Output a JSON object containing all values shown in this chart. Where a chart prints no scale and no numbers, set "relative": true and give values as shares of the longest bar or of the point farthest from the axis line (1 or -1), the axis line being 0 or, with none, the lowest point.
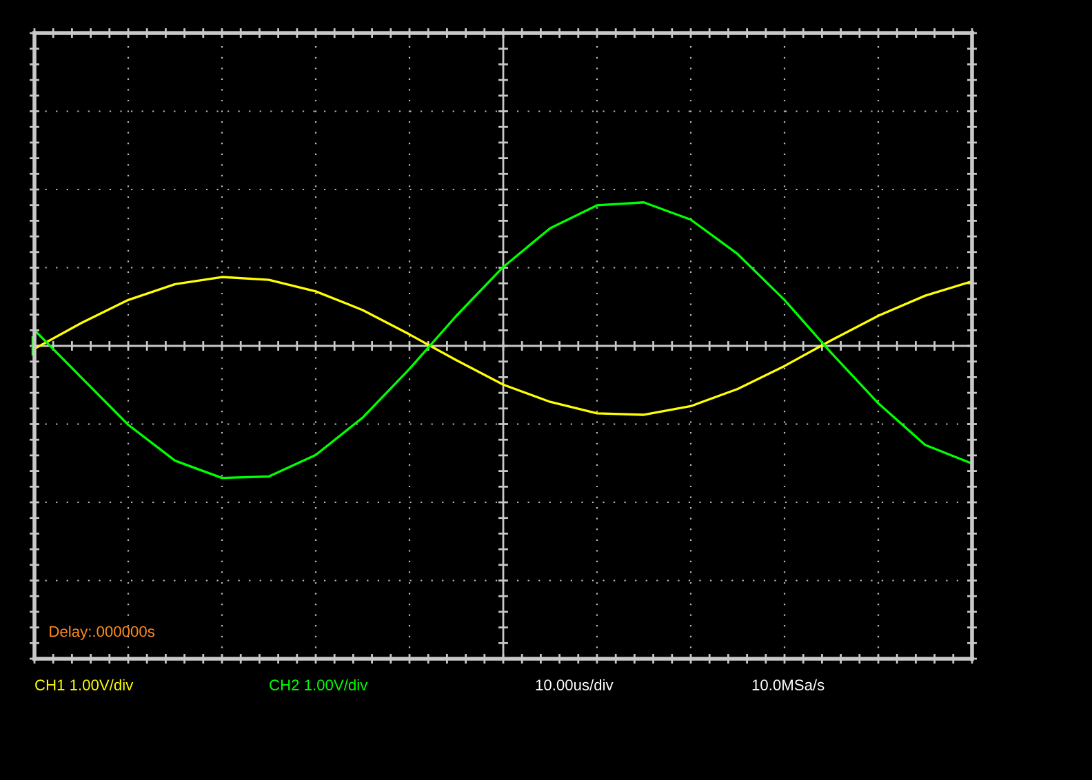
{
  "chart_data": {
    "type": "line",
    "relative": true,
    "categories": [
      null,
      null,
      null,
      null,
      null,
      null,
      null,
      null,
      null,
      null,
      null,
      null,
      null,
      null,
      null,
      null,
      null,
      null,
      null,
      null,
      null
    ],
    "series": [
      {
        "name": "CH1 1.00V/div",
        "color": "#ffff00",
        "values": [
          -0.02,
          0.16,
          0.32,
          0.43,
          0.48,
          0.46,
          0.38,
          0.25,
          0.08,
          -0.1,
          -0.27,
          -0.39,
          -0.47,
          -0.48,
          -0.42,
          -0.3,
          -0.14,
          0.04,
          0.21,
          0.35,
          0.45
        ]
      },
      {
        "name": "CH2 1.00V/div",
        "color": "#00ff00",
        "values": [
          0.11,
          -0.22,
          -0.55,
          -0.8,
          -0.92,
          -0.91,
          -0.76,
          -0.5,
          -0.16,
          0.21,
          0.55,
          0.82,
          0.98,
          1.0,
          0.88,
          0.64,
          0.32,
          -0.05,
          -0.4,
          -0.69,
          -0.82
        ]
      }
    ],
    "annotations": [
      "Delay:.000000s",
      "10.00us/div",
      "10.0MSa/s"
    ],
    "grid": true,
    "marker": "none",
    "line_style": "solid",
    "legend": "bottom"
  }
}
